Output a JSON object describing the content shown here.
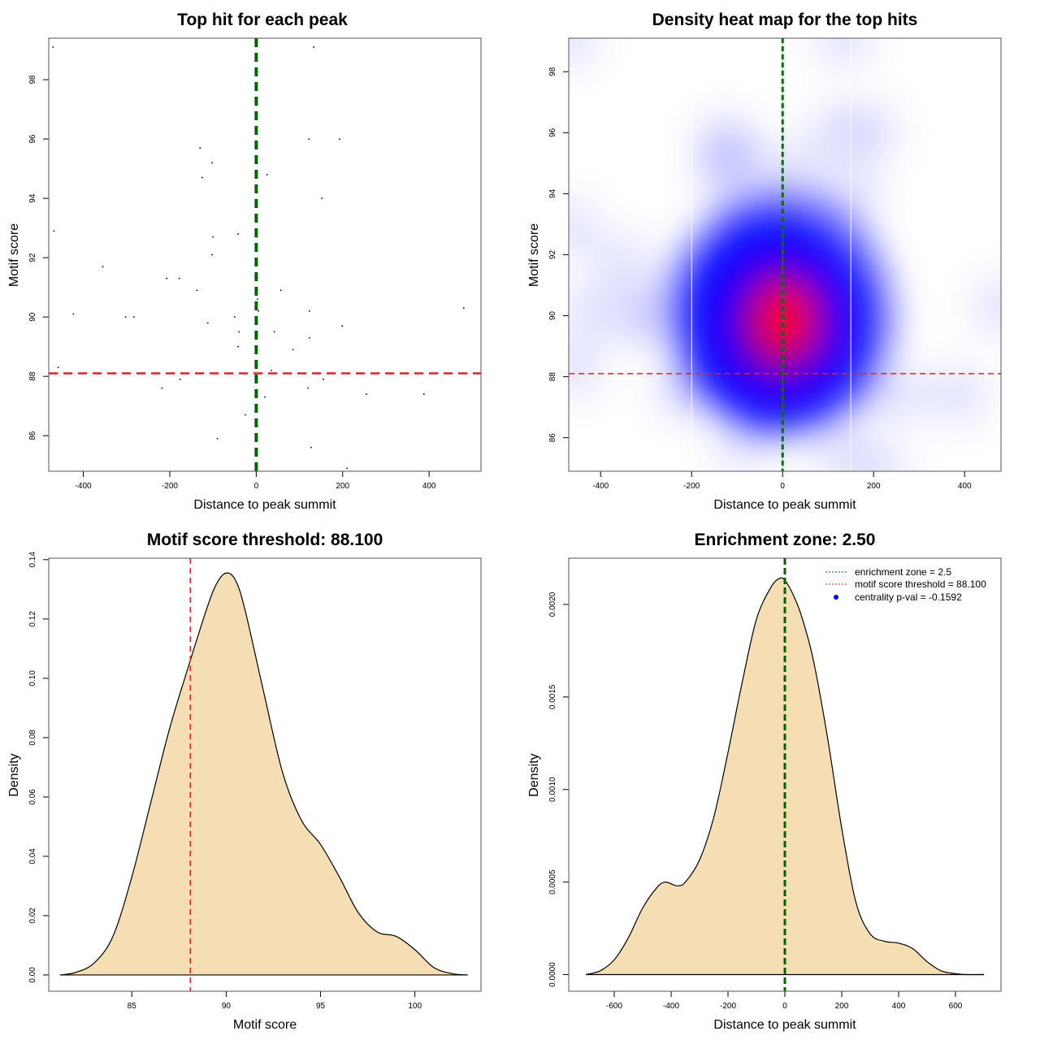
{
  "chart_data": [
    {
      "id": "scatter",
      "type": "scatter",
      "title": "Top hit for each peak",
      "xlabel": "Distance to peak summit",
      "ylabel": "Motif score",
      "xlim": [
        -480,
        520
      ],
      "ylim": [
        84.8,
        99.4
      ],
      "xticks": [
        -400,
        -200,
        0,
        200,
        400
      ],
      "yticks": [
        86,
        88,
        90,
        92,
        94,
        96,
        98
      ],
      "hline": {
        "value": 88.1,
        "color": "#d62728",
        "style": "dashed",
        "label": "motif score threshold"
      },
      "vline": {
        "value": 0,
        "color": "#006400",
        "style": "dashed",
        "label": "peak summit"
      },
      "points": [
        {
          "x": -470,
          "y": 99.1
        },
        {
          "x": 133,
          "y": 99.1
        },
        {
          "x": -130,
          "y": 95.7
        },
        {
          "x": -102,
          "y": 95.2
        },
        {
          "x": -125,
          "y": 94.7
        },
        {
          "x": 25,
          "y": 94.8
        },
        {
          "x": 122,
          "y": 96.0
        },
        {
          "x": 193,
          "y": 96.0
        },
        {
          "x": 152,
          "y": 94.0
        },
        {
          "x": -468,
          "y": 92.9
        },
        {
          "x": -100,
          "y": 92.7
        },
        {
          "x": -42,
          "y": 92.8
        },
        {
          "x": 2,
          "y": 92.7
        },
        {
          "x": -355,
          "y": 91.7
        },
        {
          "x": -207,
          "y": 91.3
        },
        {
          "x": -178,
          "y": 91.3
        },
        {
          "x": -102,
          "y": 92.1
        },
        {
          "x": -137,
          "y": 90.9
        },
        {
          "x": -423,
          "y": 90.1
        },
        {
          "x": -302,
          "y": 90.0
        },
        {
          "x": -283,
          "y": 90.0
        },
        {
          "x": -112,
          "y": 89.8
        },
        {
          "x": -50,
          "y": 90.0
        },
        {
          "x": -40,
          "y": 89.5
        },
        {
          "x": -42,
          "y": 89.0
        },
        {
          "x": 3,
          "y": 90.6
        },
        {
          "x": 5,
          "y": 90.2
        },
        {
          "x": 57,
          "y": 90.9
        },
        {
          "x": 42,
          "y": 89.5
        },
        {
          "x": 123,
          "y": 90.2
        },
        {
          "x": 123,
          "y": 89.3
        },
        {
          "x": 85,
          "y": 88.9
        },
        {
          "x": 199,
          "y": 89.7
        },
        {
          "x": 480,
          "y": 90.3
        },
        {
          "x": -458,
          "y": 88.3
        },
        {
          "x": 35,
          "y": 88.2
        },
        {
          "x": -218,
          "y": 87.6
        },
        {
          "x": -176,
          "y": 87.9
        },
        {
          "x": 20,
          "y": 87.3
        },
        {
          "x": 120,
          "y": 87.6
        },
        {
          "x": 155,
          "y": 87.9
        },
        {
          "x": 255,
          "y": 87.4
        },
        {
          "x": 388,
          "y": 87.4
        },
        {
          "x": -25,
          "y": 86.7
        },
        {
          "x": -90,
          "y": 85.9
        },
        {
          "x": 127,
          "y": 85.6
        },
        {
          "x": 210,
          "y": 84.9
        }
      ]
    },
    {
      "id": "heatmap",
      "type": "heatmap",
      "title": "Density heat map for the top hits",
      "xlabel": "Distance to peak summit",
      "ylabel": "Motif score",
      "xlim": [
        -470,
        480
      ],
      "ylim": [
        84.9,
        99.1
      ],
      "xticks": [
        -400,
        -200,
        0,
        200,
        400
      ],
      "yticks": [
        86,
        88,
        90,
        92,
        94,
        96,
        98
      ],
      "colors": {
        "low": "#ffffff",
        "mid": "#0000ff",
        "high": "#ff0000"
      },
      "peak": {
        "x": -10,
        "y": 90.0
      },
      "hline": {
        "value": 88.1,
        "color": "#d62728",
        "style": "dashed"
      },
      "vline": {
        "value": 0,
        "color": "#006400",
        "style": "dashed"
      },
      "zone_lines": [
        -200,
        150
      ]
    },
    {
      "id": "density_score",
      "type": "area",
      "title": "Motif score threshold: 88.100",
      "xlabel": "Motif score",
      "ylabel": "Density",
      "xlim": [
        80.6,
        103.5
      ],
      "ylim": [
        -0.0055,
        0.1405
      ],
      "xticks": [
        85,
        90,
        95,
        100
      ],
      "yticks": [
        0.0,
        0.02,
        0.04,
        0.06,
        0.08,
        0.1,
        0.12,
        0.14
      ],
      "ytick_labels": [
        "0.00",
        "0.02",
        "0.04",
        "0.06",
        "0.08",
        "0.10",
        "0.12",
        "0.14"
      ],
      "fill": "#f5deb3",
      "vline": {
        "value": 88.1,
        "color": "#d62728",
        "style": "dashed"
      },
      "x": [
        81.2,
        82,
        83,
        84,
        85,
        86,
        87,
        88,
        89,
        89.5,
        90,
        90.5,
        91,
        92,
        93,
        94,
        95,
        96,
        97,
        98,
        99,
        100,
        101,
        102,
        102.8
      ],
      "y": [
        0.0,
        0.0008,
        0.004,
        0.013,
        0.033,
        0.058,
        0.083,
        0.104,
        0.124,
        0.132,
        0.1355,
        0.133,
        0.123,
        0.095,
        0.068,
        0.052,
        0.044,
        0.033,
        0.021,
        0.0145,
        0.013,
        0.0085,
        0.0025,
        0.0004,
        0.0
      ]
    },
    {
      "id": "density_distance",
      "type": "area",
      "title": "Enrichment zone: 2.50",
      "xlabel": "Distance to peak summit",
      "ylabel": "Density",
      "xlim": [
        -760,
        760
      ],
      "ylim": [
        -9e-05,
        0.00225
      ],
      "xticks": [
        -600,
        -400,
        -200,
        0,
        200,
        400,
        600
      ],
      "yticks": [
        0.0,
        0.0005,
        0.001,
        0.0015,
        0.002
      ],
      "ytick_labels": [
        "0.0000",
        "0.0005",
        "0.0010",
        "0.0015",
        "0.0020"
      ],
      "fill": "#f5deb3",
      "vline": {
        "value": 0,
        "color": "#006400",
        "style": "dashed"
      },
      "x": [
        -700,
        -650,
        -600,
        -550,
        -500,
        -450,
        -420,
        -380,
        -350,
        -300,
        -250,
        -200,
        -150,
        -100,
        -50,
        -20,
        0,
        30,
        60,
        100,
        150,
        200,
        250,
        300,
        350,
        400,
        450,
        500,
        550,
        600,
        640,
        700
      ],
      "y": [
        0.0,
        2e-05,
        8e-05,
        0.0002,
        0.00036,
        0.00047,
        0.0005,
        0.00048,
        0.0005,
        0.00062,
        0.00085,
        0.0012,
        0.00158,
        0.00192,
        0.00209,
        0.00214,
        0.00213,
        0.00205,
        0.00193,
        0.0017,
        0.00128,
        0.00079,
        0.00039,
        0.00022,
        0.00018,
        0.00017,
        0.00014,
        7e-05,
        2e-05,
        5e-06,
        0.0,
        0.0
      ],
      "legend": {
        "placement": "top-right",
        "entries": [
          {
            "label": "enrichment zone = 2.5",
            "symbol": "dotted-line",
            "color": "#006400"
          },
          {
            "label": "motif score threshold = 88.100",
            "symbol": "dotted-line",
            "color": "#d62728"
          },
          {
            "label": "centrality p-val = -0.1592",
            "symbol": "dot",
            "color": "#0000ff"
          }
        ]
      }
    }
  ]
}
